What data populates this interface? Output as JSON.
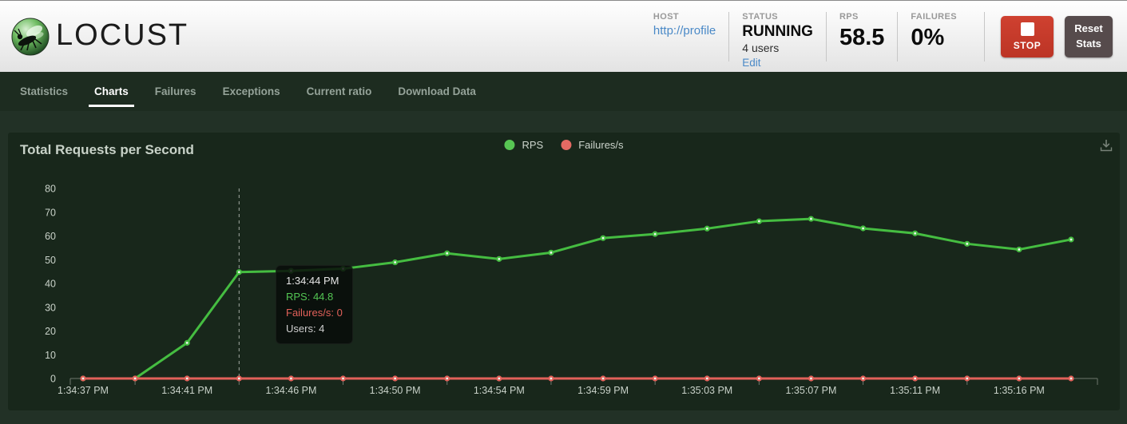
{
  "header": {
    "logo_text": "LOCUST",
    "host": {
      "label": "HOST",
      "value": "http://profile"
    },
    "status": {
      "label": "STATUS",
      "value": "RUNNING",
      "users": "4 users",
      "edit_label": "Edit"
    },
    "rps": {
      "label": "RPS",
      "value": "58.5"
    },
    "failures": {
      "label": "FAILURES",
      "value": "0%"
    },
    "stop_button_label": "STOP",
    "reset_button_label": "Reset Stats"
  },
  "nav": {
    "tabs": [
      {
        "label": "Statistics"
      },
      {
        "label": "Charts"
      },
      {
        "label": "Failures"
      },
      {
        "label": "Exceptions"
      },
      {
        "label": "Current ratio"
      },
      {
        "label": "Download Data"
      }
    ],
    "active_tab": "Charts"
  },
  "colors": {
    "rps_green": "#45bd41",
    "failures_red": "#e2615a",
    "link_blue": "#4a89c7",
    "stop_red": "#c73b2c",
    "reset_gray": "#564b4c"
  },
  "chart_data": {
    "type": "line",
    "title": "Total Requests per Second",
    "x_tick_labels": [
      "1:34:37 PM",
      "1:34:41 PM",
      "1:34:46 PM",
      "1:34:50 PM",
      "1:34:54 PM",
      "1:34:59 PM",
      "1:35:03 PM",
      "1:35:07 PM",
      "1:35:11 PM",
      "1:35:16 PM"
    ],
    "x_label_every_n_points": 2,
    "ylim": [
      0,
      80
    ],
    "y_ticks": [
      0,
      10,
      20,
      30,
      40,
      50,
      60,
      70,
      80
    ],
    "grid": false,
    "legend_position": "top-center",
    "series": [
      {
        "name": "RPS",
        "color": "#45bd41",
        "legend_color": "#57c653",
        "values": [
          0,
          0,
          15,
          44.8,
          45.3,
          46.2,
          48.9,
          52.7,
          50.3,
          53,
          59.1,
          60.8,
          63.1,
          66.2,
          67.2,
          63.2,
          61.1,
          56.7,
          54.3,
          58.5
        ]
      },
      {
        "name": "Failures/s",
        "color": "#e2615a",
        "legend_color": "#e56a63",
        "values": [
          0,
          0,
          0,
          0,
          0,
          0,
          0,
          0,
          0,
          0,
          0,
          0,
          0,
          0,
          0,
          0,
          0,
          0,
          0,
          0
        ]
      }
    ],
    "hover": {
      "index": 3,
      "time": "1:34:44 PM",
      "rps_line": "RPS: 44.8",
      "failures_line": "Failures/s: 0",
      "users_line": "Users: 4"
    }
  }
}
